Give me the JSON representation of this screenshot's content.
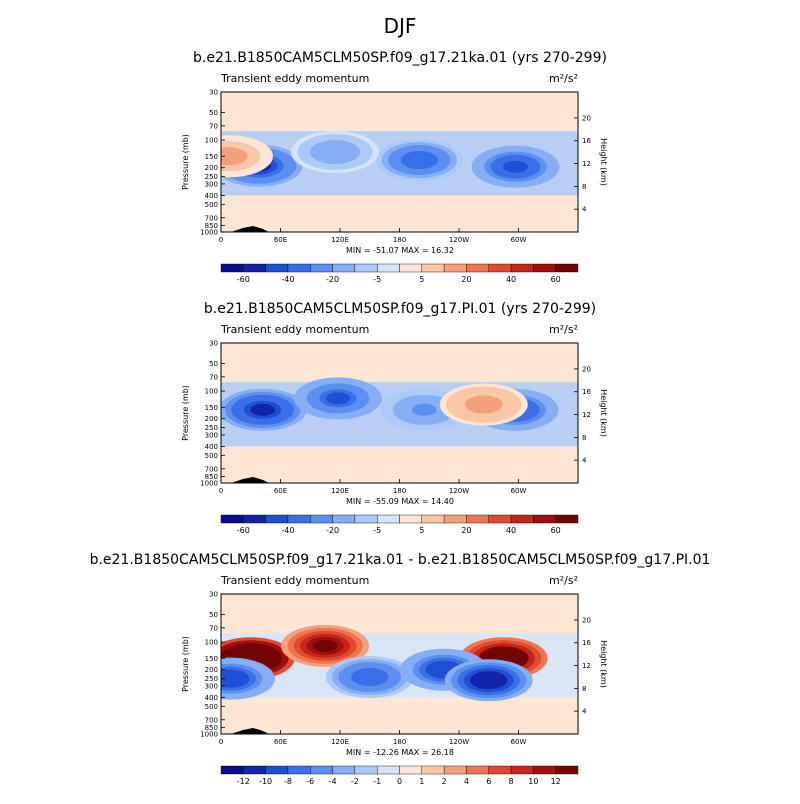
{
  "figure_title": "DJF",
  "chart_data": [
    {
      "type": "heatmap",
      "title": "b.e21.B1850CAM5CLM50SP.f09_g17.21ka.01 (yrs 270-299)",
      "left_label": "Transient eddy momentum",
      "units": "m²/s²",
      "xlabel": "",
      "ylabel": "Pressure (mb)",
      "right_axis_label": "Height (km)",
      "x_ticks": [
        "0",
        "60E",
        "120E",
        "180",
        "120W",
        "60W"
      ],
      "y_ticks": [
        "30",
        "50",
        "70",
        "100",
        "150",
        "200",
        "250",
        "300",
        "400",
        "500",
        "700",
        "850",
        "1000"
      ],
      "right_ticks": [
        "20",
        "16",
        "12",
        "8",
        "4"
      ],
      "stats_text": "MIN = -51.07  MAX = 16.32",
      "min": -51.07,
      "max": 16.32,
      "colorbar_ticks": [
        "-60",
        "-40",
        "-20",
        "-5",
        "5",
        "20",
        "40",
        "60"
      ],
      "colorbar_levels": [
        -70,
        -60,
        -50,
        -40,
        -30,
        -20,
        -10,
        -5,
        0,
        5,
        10,
        20,
        30,
        40,
        50,
        60,
        70
      ],
      "features": [
        {
          "lon": 38,
          "p": 190,
          "value": -51
        },
        {
          "lon": 200,
          "p": 165,
          "value": -40
        },
        {
          "lon": 297,
          "p": 195,
          "value": -45
        },
        {
          "lon": 115,
          "p": 135,
          "value": -18
        },
        {
          "lon": 8,
          "p": 150,
          "value": 12
        }
      ]
    },
    {
      "type": "heatmap",
      "title": "b.e21.B1850CAM5CLM50SP.f09_g17.PI.01 (yrs 270-299)",
      "left_label": "Transient eddy momentum",
      "units": "m²/s²",
      "xlabel": "",
      "ylabel": "Pressure (mb)",
      "right_axis_label": "Height (km)",
      "x_ticks": [
        "0",
        "60E",
        "120E",
        "180",
        "120W",
        "60W"
      ],
      "y_ticks": [
        "30",
        "50",
        "70",
        "100",
        "150",
        "200",
        "250",
        "300",
        "400",
        "500",
        "700",
        "850",
        "1000"
      ],
      "right_ticks": [
        "20",
        "16",
        "12",
        "8",
        "4"
      ],
      "stats_text": "MIN = -55.09  MAX = 14.40",
      "min": -55.09,
      "max": 14.4,
      "colorbar_ticks": [
        "-60",
        "-40",
        "-20",
        "-5",
        "5",
        "20",
        "40",
        "60"
      ],
      "colorbar_levels": [
        -70,
        -60,
        -50,
        -40,
        -30,
        -20,
        -10,
        -5,
        0,
        5,
        10,
        20,
        30,
        40,
        50,
        60,
        70
      ],
      "features": [
        {
          "lon": 42,
          "p": 160,
          "value": -55
        },
        {
          "lon": 118,
          "p": 120,
          "value": -42
        },
        {
          "lon": 205,
          "p": 160,
          "value": -22
        },
        {
          "lon": 296,
          "p": 160,
          "value": -46
        },
        {
          "lon": 265,
          "p": 140,
          "value": 14
        }
      ]
    },
    {
      "type": "heatmap",
      "title": "b.e21.B1850CAM5CLM50SP.f09_g17.21ka.01 - b.e21.B1850CAM5CLM50SP.f09_g17.PI.01",
      "left_label": "Transient eddy momentum",
      "units": "m²/s²",
      "xlabel": "",
      "ylabel": "Pressure (mb)",
      "right_axis_label": "Height (km)",
      "x_ticks": [
        "0",
        "60E",
        "120E",
        "180",
        "120W",
        "60W"
      ],
      "y_ticks": [
        "30",
        "50",
        "70",
        "100",
        "150",
        "200",
        "250",
        "300",
        "400",
        "500",
        "700",
        "850",
        "1000"
      ],
      "right_ticks": [
        "20",
        "16",
        "12",
        "8",
        "4"
      ],
      "stats_text": "MIN = -12.26  MAX = 26.18",
      "min": -12.26,
      "max": 26.18,
      "colorbar_ticks": [
        "-12",
        "-10",
        "-8",
        "-6",
        "-4",
        "-2",
        "-1",
        "0",
        "1",
        "2",
        "4",
        "6",
        "8",
        "10",
        "12"
      ],
      "colorbar_levels": [
        -14,
        -12,
        -10,
        -8,
        -6,
        -4,
        -2,
        -1,
        0,
        1,
        2,
        4,
        6,
        8,
        10,
        12,
        14
      ],
      "features": [
        {
          "lon": 30,
          "p": 150,
          "value": 26
        },
        {
          "lon": 105,
          "p": 110,
          "value": 14
        },
        {
          "lon": 285,
          "p": 150,
          "value": 18
        },
        {
          "lon": 10,
          "p": 250,
          "value": -10
        },
        {
          "lon": 150,
          "p": 240,
          "value": -8
        },
        {
          "lon": 225,
          "p": 200,
          "value": -10
        },
        {
          "lon": 270,
          "p": 260,
          "value": -12
        }
      ]
    }
  ],
  "colors": {
    "blue_scale": [
      "#0a0c8a",
      "#1324a8",
      "#1f4fd4",
      "#3a6fe8",
      "#5b8ff0",
      "#86aef5",
      "#adc9f8",
      "#d3e4fb"
    ],
    "red_scale": [
      "#fde6d3",
      "#f9c6a6",
      "#f4a07c",
      "#ee7552",
      "#e04a2e",
      "#c62519",
      "#a10e0e",
      "#730505"
    ]
  }
}
